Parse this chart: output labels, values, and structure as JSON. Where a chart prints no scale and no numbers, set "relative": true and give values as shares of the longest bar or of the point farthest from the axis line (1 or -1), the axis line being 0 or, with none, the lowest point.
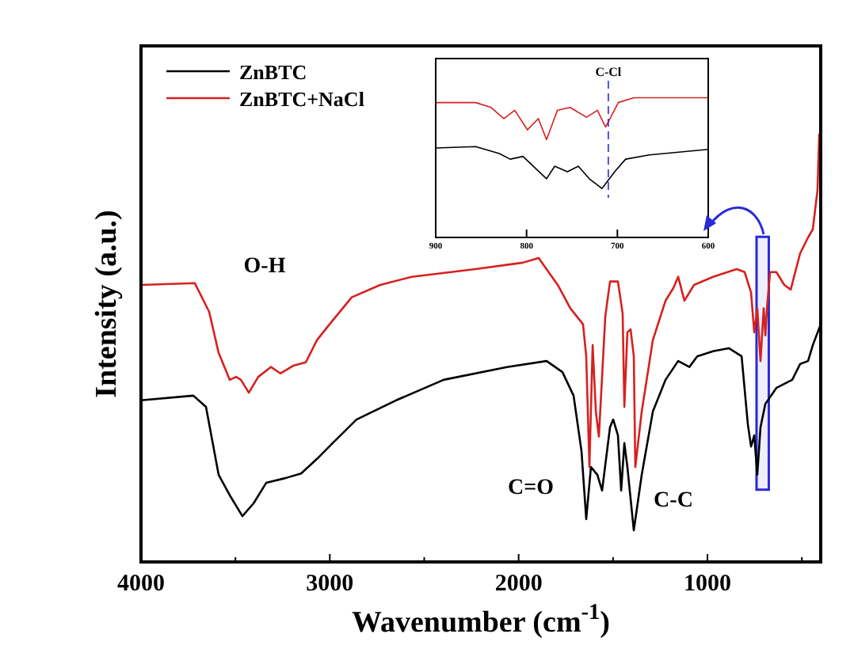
{
  "chart_data": [
    {
      "type": "line",
      "xlabel": "Wavenumber (cm$^{-1}$)",
      "ylabel": "Intensity (a.u.)",
      "relative": true,
      "legend": "top left",
      "xlim": [
        4000,
        400
      ],
      "xticks": [
        4000,
        {
          "value": 3500,
          "label": null
        },
        3000,
        {
          "value": 2500,
          "label": null
        },
        2000,
        {
          "value": 1500,
          "label": null
        },
        1000,
        {
          "value": 500,
          "label": null
        }
      ],
      "series": [
        {
          "name": "ZnBTC",
          "color": "#000000",
          "x": [
            4000,
            3723,
            3656,
            3589,
            3530,
            3463,
            3404,
            3337,
            3236,
            3152,
            3068,
            2985,
            2859,
            2649,
            2397,
            2061,
            1852,
            1768,
            1709,
            1667,
            1642,
            1617,
            1583,
            1558,
            1516,
            1499,
            1474,
            1457,
            1440,
            1424,
            1390,
            1348,
            1289,
            1222,
            1155,
            1096,
            1054,
            970,
            887,
            819,
            786,
            769,
            752,
            736,
            719,
            693,
            635,
            551,
            509,
            467,
            442,
            400
          ],
          "values": [
            0.378,
            0.389,
            0.363,
            0.204,
            0.156,
            0.107,
            0.137,
            0.185,
            0.196,
            0.207,
            0.241,
            0.278,
            0.333,
            0.378,
            0.426,
            0.456,
            0.47,
            0.444,
            0.389,
            0.259,
            0.1,
            0.222,
            0.204,
            0.167,
            0.315,
            0.333,
            0.296,
            0.167,
            0.278,
            0.222,
            0.074,
            0.204,
            0.352,
            0.426,
            0.47,
            0.456,
            0.481,
            0.493,
            0.5,
            0.481,
            0.322,
            0.27,
            0.296,
            0.204,
            0.315,
            0.37,
            0.407,
            0.426,
            0.463,
            0.47,
            0.507,
            0.556
          ]
        },
        {
          "name": "ZnBTC+NaCl",
          "color": "#d62020",
          "x": [
            4000,
            3715,
            3639,
            3589,
            3530,
            3496,
            3471,
            3429,
            3379,
            3312,
            3262,
            3194,
            3127,
            3068,
            3001,
            2884,
            2733,
            2565,
            2229,
            1978,
            1894,
            1793,
            1726,
            1659,
            1642,
            1625,
            1608,
            1591,
            1575,
            1541,
            1516,
            1474,
            1449,
            1440,
            1424,
            1407,
            1390,
            1382,
            1348,
            1289,
            1222,
            1180,
            1155,
            1122,
            1071,
            970,
            845,
            803,
            769,
            752,
            736,
            719,
            702,
            693,
            685,
            668,
            635,
            593,
            559,
            509,
            467,
            442,
            417,
            408
          ],
          "values": [
            0.648,
            0.652,
            0.585,
            0.489,
            0.426,
            0.433,
            0.426,
            0.396,
            0.433,
            0.456,
            0.441,
            0.459,
            0.467,
            0.519,
            0.556,
            0.619,
            0.648,
            0.667,
            0.685,
            0.7,
            0.711,
            0.648,
            0.593,
            0.556,
            0.481,
            0.222,
            0.507,
            0.352,
            0.293,
            0.574,
            0.656,
            0.656,
            0.581,
            0.363,
            0.537,
            0.544,
            0.481,
            0.222,
            0.352,
            0.519,
            0.611,
            0.641,
            0.667,
            0.611,
            0.648,
            0.667,
            0.685,
            0.678,
            0.63,
            0.537,
            0.593,
            0.47,
            0.593,
            0.53,
            0.593,
            0.678,
            0.678,
            0.648,
            0.637,
            0.722,
            0.759,
            0.778,
            0.87,
            1
          ]
        }
      ],
      "annotations": [
        "O-H",
        "C=O",
        "C-C"
      ],
      "bands": [
        {
          "axis": "x",
          "from": 740,
          "to": 675,
          "color": "#2a2ad6"
        }
      ]
    },
    {
      "type": "line",
      "relative": true,
      "xlim": [
        900,
        600
      ],
      "xticks": [
        900,
        800,
        700,
        600
      ],
      "series": [
        {
          "color": "#d62020",
          "x": [
            900,
            856,
            839,
            825,
            813,
            799,
            787,
            778,
            766,
            752,
            734,
            722,
            713,
            699,
            682,
            600
          ],
          "values": [
            0.965,
            0.965,
            0.93,
            0.85,
            0.91,
            0.77,
            0.85,
            0.7,
            0.91,
            0.93,
            0.86,
            0.91,
            0.79,
            0.965,
            1,
            1
          ]
        },
        {
          "color": "#000000",
          "x": [
            900,
            856,
            830,
            818,
            804,
            778,
            769,
            755,
            743,
            731,
            717,
            703,
            691,
            665,
            600
          ],
          "values": [
            0.64,
            0.65,
            0.6,
            0.56,
            0.58,
            0.42,
            0.51,
            0.47,
            0.51,
            0.42,
            0.35,
            0.47,
            0.56,
            0.59,
            0.63
          ]
        }
      ],
      "ref_lines": [
        {
          "axis": "x",
          "value": 710,
          "label": "C-Cl",
          "color": "#2a2ad6",
          "line_style": "dashed"
        }
      ]
    }
  ]
}
